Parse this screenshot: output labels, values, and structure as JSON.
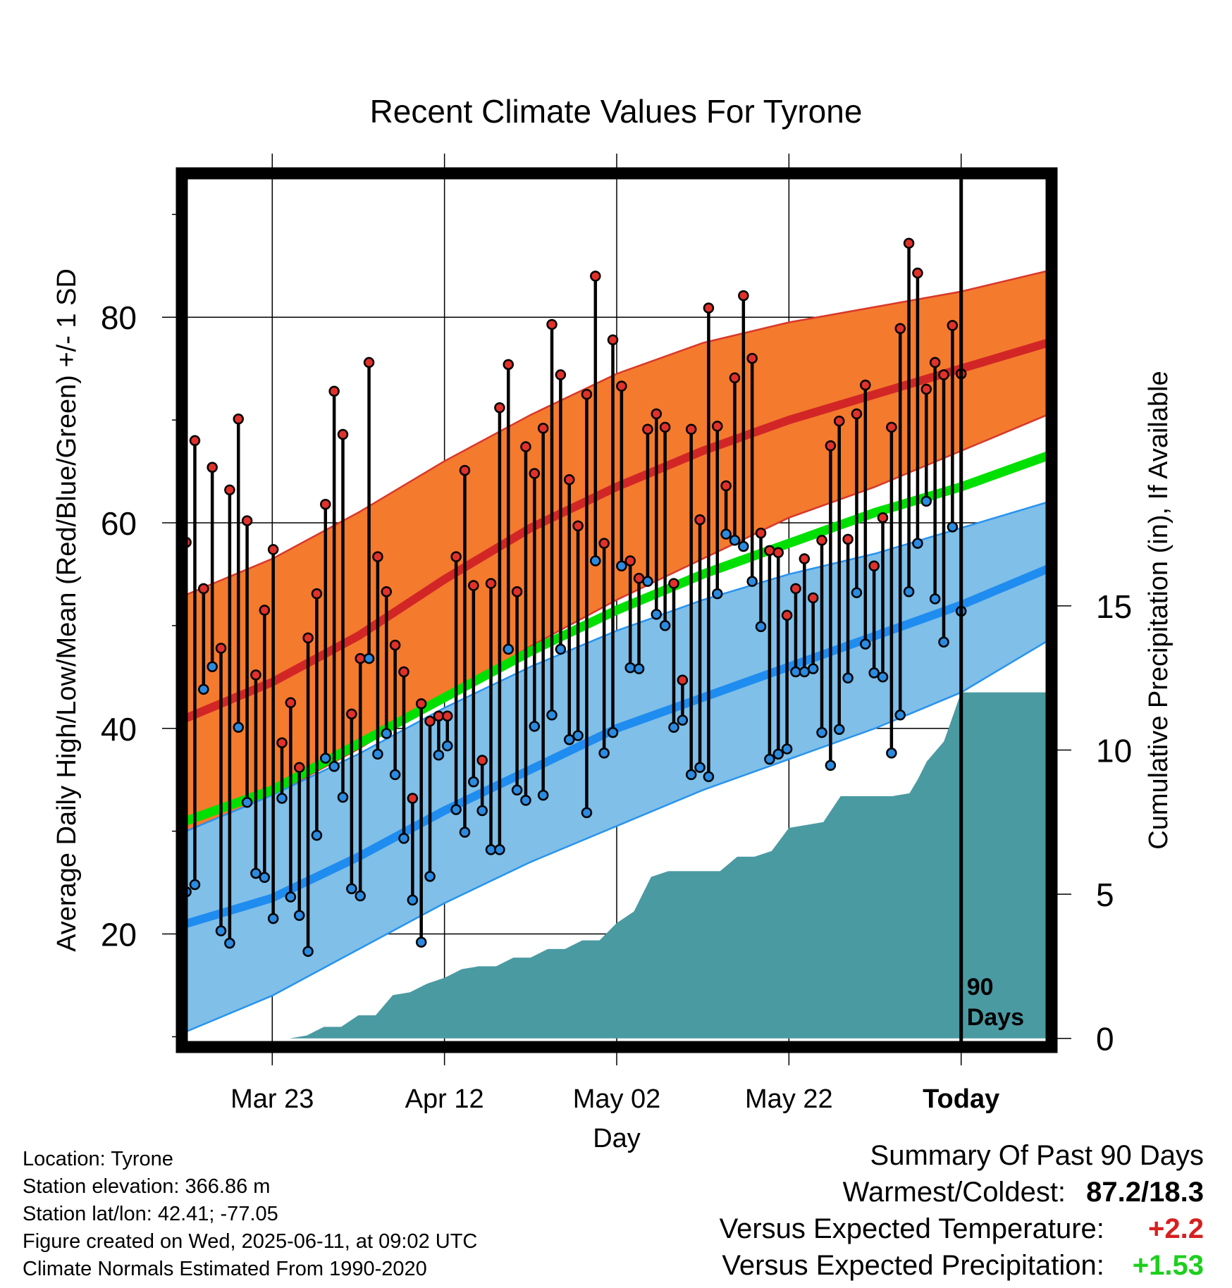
{
  "chart_data": {
    "type": "line",
    "title": "Recent Climate Values For Tyrone",
    "xlabel": "Day",
    "ylabel": "Average Daily High/Low/Mean (Red/Blue/Green) +/- 1 SD",
    "y2label": "Cumulative Precipitation (in), If Available",
    "xlim": [
      -10.5,
      90.5
    ],
    "ylim": [
      9,
      94
    ],
    "y2lim": [
      -0.3,
      30
    ],
    "x_tick_labels": [
      {
        "x": 0,
        "label": "Mar 23"
      },
      {
        "x": 20,
        "label": "Apr 12"
      },
      {
        "x": 40,
        "label": "May 02"
      },
      {
        "x": 60,
        "label": "May 22"
      },
      {
        "x": 80,
        "label": "Today"
      }
    ],
    "y_ticks": [
      20,
      40,
      60,
      80
    ],
    "y2_ticks": [
      0,
      5,
      10,
      15
    ],
    "grid": true,
    "today_marker": {
      "x": 80,
      "label_line1": "90",
      "label_line2": "Days"
    },
    "colors": {
      "high_band": "#f47a2e",
      "high_mean": "#d22626",
      "high_band_edge": "#d8382a",
      "low_band": "#7fbfe8",
      "low_mean": "#1f8cf0",
      "low_band_edge": "#2793ef",
      "mean_line": "#00e000",
      "precip": "#4a9aa2",
      "high_dot": "#e0312b",
      "low_dot": "#2a8be0"
    },
    "normals": {
      "x": [
        -10,
        0,
        10,
        20,
        30,
        40,
        50,
        60,
        70,
        80,
        90
      ],
      "high_mean": [
        41,
        44.5,
        49,
        54.5,
        59.5,
        63.5,
        67,
        70,
        72.5,
        75,
        77.5
      ],
      "high_upper": [
        53,
        56.5,
        61,
        66,
        70.5,
        74.5,
        77.5,
        79.5,
        81,
        82.5,
        84.5
      ],
      "high_lower": [
        30,
        33.5,
        38,
        43,
        48,
        52.5,
        56.5,
        60.5,
        63.5,
        67,
        70.5
      ],
      "low_mean": [
        21,
        23.5,
        27.5,
        32,
        36,
        40,
        43,
        46,
        49,
        52,
        55.5
      ],
      "low_upper": [
        30,
        33.5,
        37.5,
        42,
        46,
        49.5,
        52.5,
        55,
        57,
        59.5,
        62
      ],
      "low_lower": [
        10.5,
        14,
        18.5,
        23,
        27,
        30.5,
        34,
        37,
        40,
        43.5,
        48.5
      ],
      "mean": [
        31,
        34,
        38.5,
        43,
        47.5,
        51.5,
        55,
        58,
        61,
        63.5,
        66.5
      ]
    },
    "series": [
      {
        "name": "High",
        "values": [
          58.1,
          68.0,
          53.6,
          65.4,
          47.8,
          63.2,
          70.1,
          60.2,
          45.2,
          51.5,
          57.4,
          38.6,
          42.5,
          36.2,
          48.8,
          53.1,
          61.8,
          72.8,
          68.6,
          41.4,
          46.8,
          75.6,
          56.7,
          53.3,
          48.1,
          45.5,
          33.2,
          42.4,
          40.7,
          41.2,
          41.2,
          56.7,
          65.1,
          53.9,
          36.9,
          54.1,
          71.2,
          75.4,
          53.3,
          67.4,
          64.8,
          69.2,
          79.3,
          74.4,
          64.2,
          59.7,
          72.5,
          84.0,
          58.0,
          77.8,
          73.3,
          56.3,
          54.6,
          69.1,
          70.6,
          69.3,
          54.1,
          44.7,
          69.1,
          60.3,
          80.9,
          69.4,
          63.6,
          74.1,
          82.1,
          76.0,
          59.0,
          57.3,
          57.1,
          51.0,
          53.6,
          56.5,
          52.7,
          58.3,
          67.5,
          69.9,
          58.4,
          70.6,
          73.4,
          55.8,
          60.5,
          69.3,
          78.9,
          87.2,
          84.3,
          73.0,
          75.6,
          74.4,
          79.2,
          74.5
        ]
      },
      {
        "name": "Low",
        "values": [
          24.1,
          24.8,
          43.8,
          46.0,
          20.3,
          19.1,
          40.1,
          32.8,
          25.9,
          25.5,
          21.5,
          33.2,
          23.6,
          21.8,
          18.3,
          29.6,
          37.1,
          36.3,
          33.3,
          24.4,
          23.7,
          46.8,
          37.5,
          39.5,
          35.5,
          29.3,
          23.3,
          19.2,
          25.6,
          37.4,
          38.3,
          32.1,
          29.9,
          34.8,
          32.0,
          28.2,
          28.2,
          47.7,
          34.0,
          33.0,
          40.2,
          33.5,
          41.3,
          47.7,
          38.9,
          39.3,
          31.8,
          56.3,
          37.6,
          39.6,
          55.8,
          45.9,
          45.8,
          54.3,
          51.1,
          50.0,
          40.1,
          40.8,
          35.5,
          36.2,
          35.3,
          53.1,
          58.9,
          58.3,
          57.7,
          54.3,
          49.9,
          37.0,
          37.5,
          38.0,
          45.5,
          45.5,
          45.8,
          39.6,
          36.4,
          39.9,
          44.9,
          53.2,
          48.2,
          45.4,
          45.0,
          37.6,
          41.3,
          53.3,
          58.0,
          62.1,
          52.6,
          48.4,
          59.6,
          51.4
        ]
      }
    ],
    "precip": {
      "x": [
        -10,
        -6,
        -3,
        0,
        2,
        4,
        6,
        8,
        10,
        12,
        14,
        16,
        18,
        20,
        22,
        24,
        26,
        28,
        30,
        32,
        34,
        36,
        38,
        40,
        42,
        44,
        46,
        48,
        50,
        52,
        54,
        56,
        58,
        60,
        62,
        64,
        66,
        68,
        70,
        72,
        74,
        75,
        76,
        78,
        80,
        82,
        84,
        86,
        88,
        90
      ],
      "values": [
        0,
        0,
        0,
        0,
        0,
        0.1,
        0.4,
        0.4,
        0.8,
        0.8,
        1.5,
        1.6,
        1.9,
        2.1,
        2.4,
        2.5,
        2.5,
        2.8,
        2.8,
        3.1,
        3.1,
        3.4,
        3.4,
        4.0,
        4.4,
        5.6,
        5.8,
        5.8,
        5.8,
        5.8,
        6.3,
        6.3,
        6.5,
        7.3,
        7.4,
        7.5,
        8.4,
        8.4,
        8.4,
        8.4,
        8.5,
        9.0,
        9.6,
        10.3,
        12.0,
        12.0,
        12.0,
        12.0,
        12.0,
        12.0
      ]
    }
  },
  "footer": {
    "location": "Location: Tyrone",
    "elevation": "Station elevation: 366.86 m",
    "latlon": "Station lat/lon: 42.41; -77.05",
    "created": "Figure created on Wed, 2025-06-11, at 09:02 UTC",
    "normals_note": "Climate Normals Estimated From 1990-2020"
  },
  "summary": {
    "title": "Summary Of Past 90 Days",
    "warm_cold_label": "Warmest/Coldest:",
    "warm_cold_value": "87.2/18.3",
    "temp_label": "Versus Expected Temperature:",
    "temp_value": "+2.2",
    "temp_color": "#d62020",
    "precip_label": "Versus Expected Precipitation:",
    "precip_value": "+1.53",
    "precip_color": "#1ecf1e"
  }
}
